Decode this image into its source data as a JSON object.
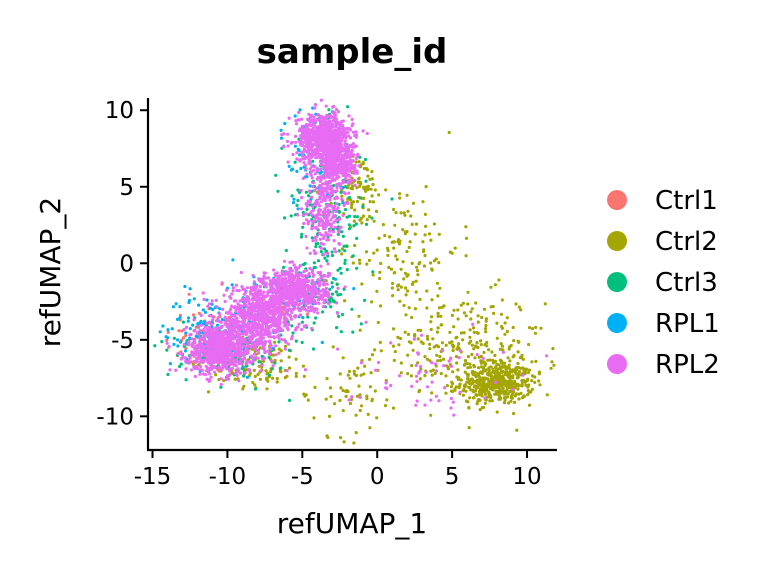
{
  "chart_data": {
    "type": "scatter",
    "title": "sample_id",
    "xlabel": "refUMAP_1",
    "ylabel": "refUMAP_2",
    "xlim": [
      -15.3,
      12.0
    ],
    "ylim": [
      -12.2,
      10.8
    ],
    "xticks": [
      -15,
      -10,
      -5,
      0,
      5,
      10
    ],
    "xtick_labels": [
      "-15",
      "-10",
      "-5",
      "0",
      "5",
      "10"
    ],
    "yticks": [
      -10,
      -5,
      0,
      5,
      10
    ],
    "ytick_labels": [
      "-10",
      "-5",
      "0",
      "5",
      "10"
    ],
    "grid": false,
    "legend_position": "right",
    "series": [
      {
        "name": "Ctrl1",
        "color": "#F8766D",
        "clusters": [
          {
            "cx": -11.0,
            "cy": -5.0,
            "sx": 1.6,
            "sy": 1.2,
            "n": 80
          },
          {
            "cx": -6.5,
            "cy": -2.5,
            "sx": 1.5,
            "sy": 1.0,
            "n": 30
          }
        ]
      },
      {
        "name": "Ctrl2",
        "color": "#A3A500",
        "clusters": [
          {
            "cx": 8.0,
            "cy": -7.8,
            "sx": 1.2,
            "sy": 0.7,
            "n": 450
          },
          {
            "cx": 5.5,
            "cy": -5.5,
            "sx": 2.8,
            "sy": 1.8,
            "n": 260
          },
          {
            "cx": 1.5,
            "cy": 1.0,
            "sx": 2.0,
            "sy": 2.2,
            "n": 140
          },
          {
            "cx": -1.5,
            "cy": 5.0,
            "sx": 0.9,
            "sy": 1.2,
            "n": 90
          },
          {
            "cx": -8.0,
            "cy": -6.5,
            "sx": 1.6,
            "sy": 0.8,
            "n": 130
          },
          {
            "cx": -2.0,
            "cy": -8.5,
            "sx": 1.6,
            "sy": 1.4,
            "n": 60
          }
        ]
      },
      {
        "name": "Ctrl3",
        "color": "#00BF7D",
        "clusters": [
          {
            "cx": -3.5,
            "cy": 3.0,
            "sx": 1.4,
            "sy": 2.8,
            "n": 170
          },
          {
            "cx": -10.0,
            "cy": -5.5,
            "sx": 2.0,
            "sy": 1.2,
            "n": 140
          },
          {
            "cx": -4.0,
            "cy": -2.5,
            "sx": 1.6,
            "sy": 1.2,
            "n": 70
          }
        ]
      },
      {
        "name": "RPL1",
        "color": "#00B0F6",
        "clusters": [
          {
            "cx": -11.0,
            "cy": -4.5,
            "sx": 1.6,
            "sy": 1.2,
            "n": 150
          },
          {
            "cx": -4.0,
            "cy": 7.0,
            "sx": 1.2,
            "sy": 1.8,
            "n": 80
          },
          {
            "cx": -6.0,
            "cy": -2.0,
            "sx": 1.8,
            "sy": 1.2,
            "n": 60
          }
        ]
      },
      {
        "name": "RPL2",
        "color": "#E76BF3",
        "clusters": [
          {
            "cx": -10.5,
            "cy": -5.6,
            "sx": 1.1,
            "sy": 0.8,
            "n": 700
          },
          {
            "cx": -8.0,
            "cy": -3.6,
            "sx": 1.2,
            "sy": 1.0,
            "n": 700
          },
          {
            "cx": -5.5,
            "cy": -1.8,
            "sx": 1.1,
            "sy": 0.7,
            "n": 600
          },
          {
            "cx": -3.6,
            "cy": 8.2,
            "sx": 0.9,
            "sy": 0.8,
            "n": 700
          },
          {
            "cx": -2.6,
            "cy": 6.5,
            "sx": 0.6,
            "sy": 0.8,
            "n": 350
          },
          {
            "cx": -3.6,
            "cy": 3.5,
            "sx": 0.6,
            "sy": 1.5,
            "n": 250
          },
          {
            "cx": 3.0,
            "cy": -7.0,
            "sx": 2.8,
            "sy": 1.3,
            "n": 60
          }
        ]
      }
    ]
  }
}
